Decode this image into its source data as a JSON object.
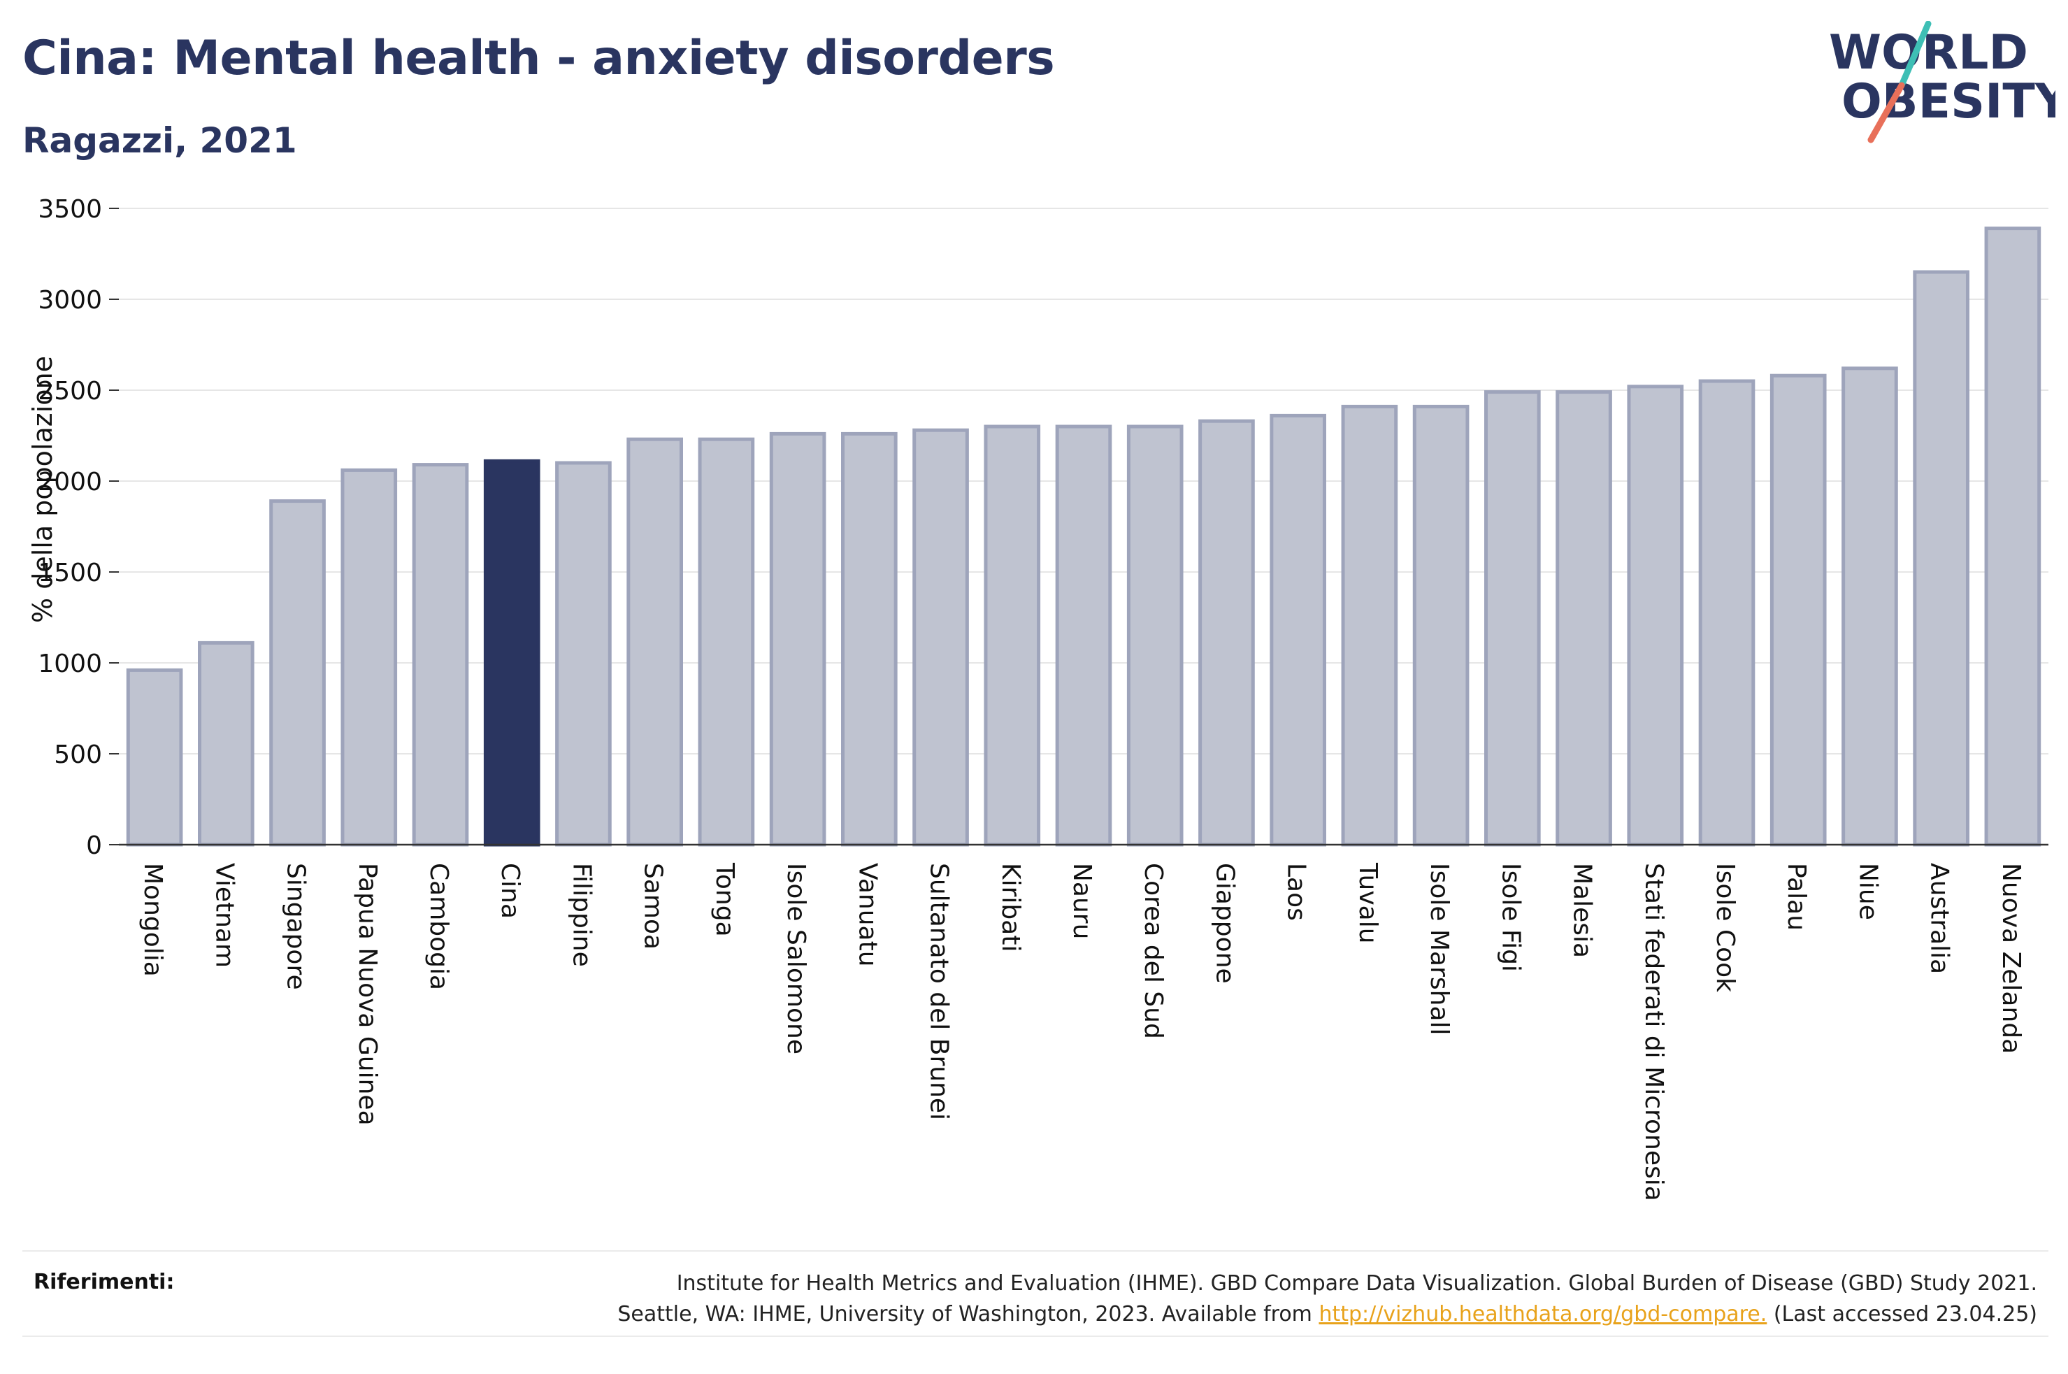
{
  "header": {
    "title": "Cina: Mental health - anxiety disorders",
    "subtitle": "Ragazzi, 2021"
  },
  "logo": {
    "line1": "WORLD",
    "line2": "OBESITY",
    "colors": {
      "text": "#2a3560",
      "slash_top": "#3ebfb5",
      "slash_bottom": "#e8705a"
    }
  },
  "chart_data": {
    "type": "bar",
    "ylabel": "% della popolazione",
    "ylim": [
      0,
      3500
    ],
    "yticks": [
      0,
      500,
      1000,
      1500,
      2000,
      2500,
      3000,
      3500
    ],
    "grid": true,
    "highlight": "Cina",
    "colors": {
      "bar": "#bfc3d0",
      "bar_edge": "#9ea4bb",
      "highlight": "#2a3560"
    },
    "categories": [
      "Mongolia",
      "Vietnam",
      "Singapore",
      "Papua Nuova Guinea",
      "Cambogia",
      "Cina",
      "Filippine",
      "Samoa",
      "Tonga",
      "Isole Salomone",
      "Vanuatu",
      "Sultanato del Brunei",
      "Kiribati",
      "Nauru",
      "Corea del Sud",
      "Giappone",
      "Laos",
      "Tuvalu",
      "Isole Marshall",
      "Isole Figi",
      "Malesia",
      "Stati federati di Micronesia",
      "Isole Cook",
      "Palau",
      "Niue",
      "Australia",
      "Nuova Zelanda"
    ],
    "values": [
      960,
      1110,
      1890,
      2060,
      2090,
      2110,
      2100,
      2230,
      2230,
      2260,
      2260,
      2280,
      2300,
      2300,
      2300,
      2330,
      2360,
      2410,
      2410,
      2490,
      2490,
      2520,
      2550,
      2580,
      2620,
      3150,
      3390
    ]
  },
  "footer": {
    "label": "Riferimenti:",
    "line1": "Institute for Health Metrics and Evaluation (IHME). GBD Compare Data Visualization. Global Burden of Disease (GBD) Study 2021.",
    "line2_prefix": "Seattle, WA: IHME, University of Washington, 2023. Available from ",
    "link": "http://vizhub.healthdata.org/gbd-compare.",
    "line2_suffix": " (Last accessed 23.04.25)"
  }
}
